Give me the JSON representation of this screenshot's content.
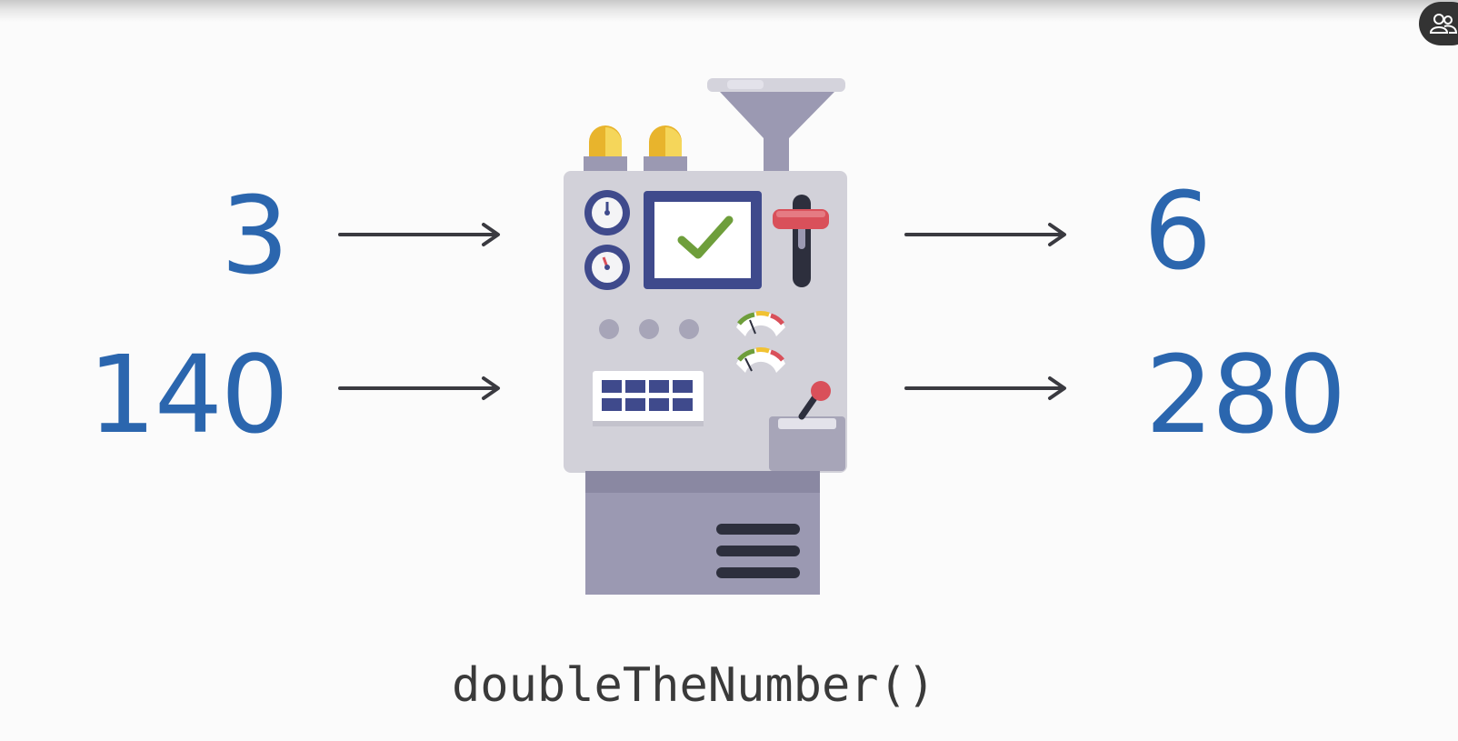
{
  "inputs": [
    "3",
    "140"
  ],
  "outputs": [
    "6",
    "280"
  ],
  "function_label": "doubleTheNumber()",
  "icons": [
    "user-group-icon",
    "arrow-right-icon",
    "machine-illustration",
    "checkmark-icon"
  ],
  "colors": {
    "number": "#2b66ae",
    "arrow": "#3a3a40",
    "machine_body": "#d2d1d9",
    "machine_dark": "#9b99b2",
    "screen_frame": "#3f4a8c",
    "check": "#6e9e3b",
    "lever": "#d9505a",
    "lamp": "#f1c232"
  }
}
